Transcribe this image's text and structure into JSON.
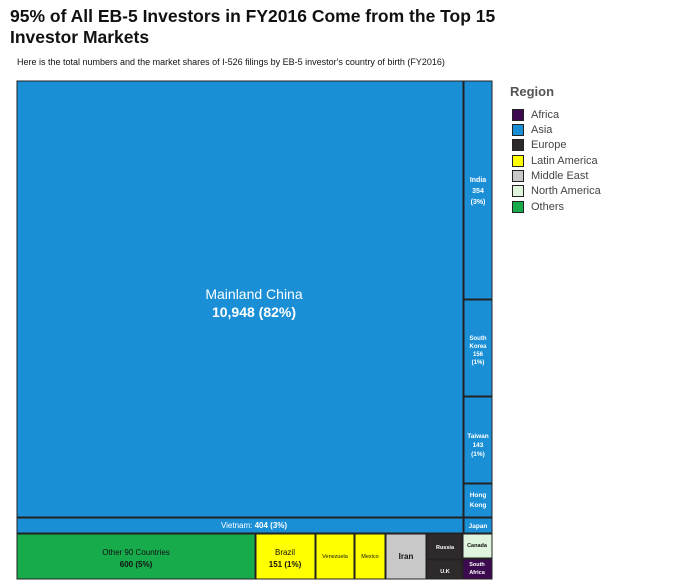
{
  "title": "95% of All EB-5 Investors in FY2016 Come from the Top 15 Investor Markets",
  "subtitle": "Here is the total numbers and the market shares of I-526 filings by EB-5 investor's country of birth (FY2016)",
  "colors": {
    "Africa": "#3d0a4f",
    "Asia": "#1a8fd6",
    "Europe": "#2e2a2c",
    "Latin America": "#ffff00",
    "Middle East": "#c8c8c8",
    "North America": "#dff5dd",
    "Others": "#18ab4b"
  },
  "chart_data": {
    "type": "treemap",
    "title": "95% of All EB-5 Investors in FY2016 Come from the Top 15 Investor Markets",
    "legend_title": "Region",
    "legend": [
      "Africa",
      "Asia",
      "Europe",
      "Latin America",
      "Middle East",
      "North America",
      "Others"
    ],
    "legend_position": "top-right",
    "nodes": [
      {
        "key": "china",
        "label": "Mainland China",
        "region": "Asia",
        "value": 10948,
        "share": "82%",
        "text": "10,948 (82%)"
      },
      {
        "key": "india",
        "label": "India",
        "region": "Asia",
        "value": 354,
        "share": "3%",
        "text": "354"
      },
      {
        "key": "south_korea",
        "label": "South Korea",
        "region": "Asia",
        "value": 156,
        "share": "1%",
        "text": "156"
      },
      {
        "key": "taiwan",
        "label": "Taiwan",
        "region": "Asia",
        "value": 143,
        "share": "1%",
        "text": "143"
      },
      {
        "key": "hong_kong",
        "label": "Hong Kong",
        "region": "Asia"
      },
      {
        "key": "vietnam",
        "label": "Vietnam:",
        "region": "Asia",
        "value": 404,
        "share": "3%",
        "text": "404 (3%)"
      },
      {
        "key": "japan",
        "label": "Japan",
        "region": "Asia"
      },
      {
        "key": "other",
        "label": "Other 90 Countries",
        "region": "Others",
        "value": 600,
        "share": "5%",
        "text": "600 (5%)"
      },
      {
        "key": "brazil",
        "label": "Brazil",
        "region": "Latin America",
        "value": 151,
        "share": "1%",
        "text": "151 (1%)"
      },
      {
        "key": "venezuela",
        "label": "Venezuela",
        "region": "Latin America"
      },
      {
        "key": "mexico",
        "label": "Mexico",
        "region": "Latin America"
      },
      {
        "key": "iran",
        "label": "Iran",
        "region": "Middle East"
      },
      {
        "key": "russia",
        "label": "Russia",
        "region": "Europe"
      },
      {
        "key": "uk",
        "label": "U.K",
        "region": "Europe"
      },
      {
        "key": "canada",
        "label": "Canada",
        "region": "North America"
      },
      {
        "key": "south_africa",
        "label": "South Africa",
        "region": "Africa"
      }
    ]
  }
}
